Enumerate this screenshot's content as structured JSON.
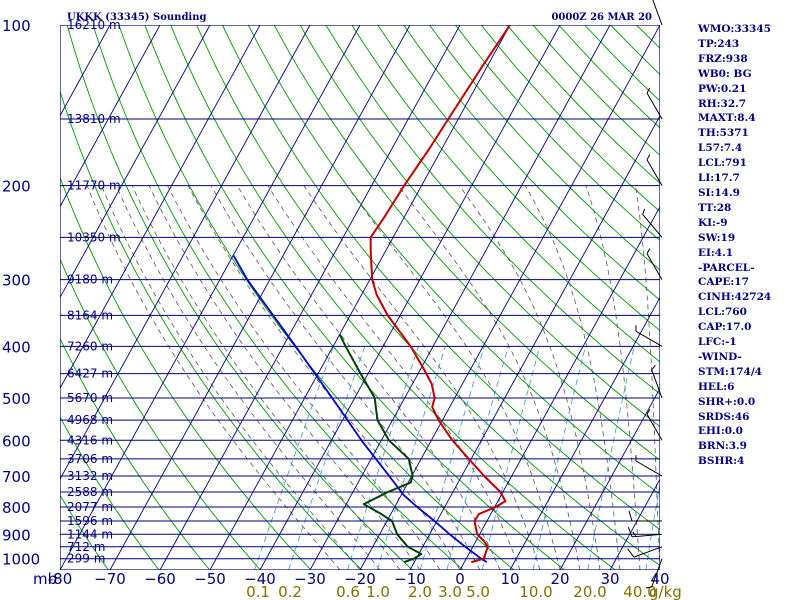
{
  "header": {
    "station_title": "UKKK (33345) Sounding",
    "valid_time": "0000Z 26 MAR 20"
  },
  "colors": {
    "isobar": "#000080",
    "isotherm": "#000080",
    "dry_adiabat": "#009900",
    "moist_adiabat": "#555555",
    "mixing_ratio": "#3399cc",
    "temperature": "#c00000",
    "dewpoint": "#004000",
    "parcel": "#0000cc",
    "axis_label": "#000080",
    "mixing_label": "#807000",
    "wind_barb": "#000000",
    "indices_text": "#000080"
  },
  "chart_data": {
    "type": "skew-t",
    "pressure_axis": {
      "unit_label": "mb",
      "ticks": [
        "100",
        "200",
        "300",
        "400",
        "500",
        "600",
        "700",
        "800",
        "900",
        "1000"
      ]
    },
    "temperature_axis": {
      "ticks": [
        {
          "t": -80,
          "label": "-80"
        },
        {
          "t": -70,
          "label": "−70"
        },
        {
          "t": -60,
          "label": "−60"
        },
        {
          "t": -50,
          "label": "−50"
        },
        {
          "t": -40,
          "label": "−40"
        },
        {
          "t": -30,
          "label": "−30"
        },
        {
          "t": -20,
          "label": "−20"
        },
        {
          "t": -10,
          "label": "−10"
        },
        {
          "t": 0,
          "label": "0"
        },
        {
          "t": 10,
          "label": "10"
        },
        {
          "t": 20,
          "label": "20"
        },
        {
          "t": 30,
          "label": "30"
        },
        {
          "t": 40,
          "label": "40"
        }
      ]
    },
    "mixing_ratio_labels": {
      "values": [
        "0.1",
        "0.2",
        "0.6",
        "1.0",
        "2.0",
        "3.0",
        "5.0",
        "10.0",
        "20.0",
        "40.0"
      ],
      "unit": "g/kg"
    },
    "heights": [
      {
        "p": 100,
        "label": "16210 m"
      },
      {
        "p": 150,
        "label": "13810 m"
      },
      {
        "p": 200,
        "label": "11770 m"
      },
      {
        "p": 250,
        "label": "10350 m"
      },
      {
        "p": 300,
        "label": "9180 m"
      },
      {
        "p": 350,
        "label": "8164 m"
      },
      {
        "p": 400,
        "label": "7260 m"
      },
      {
        "p": 450,
        "label": "6427 m"
      },
      {
        "p": 500,
        "label": "5670 m"
      },
      {
        "p": 550,
        "label": "4968 m"
      },
      {
        "p": 600,
        "label": "4316 m"
      },
      {
        "p": 650,
        "label": "3706 m"
      },
      {
        "p": 700,
        "label": "3132 m"
      },
      {
        "p": 750,
        "label": "2588 m"
      },
      {
        "p": 800,
        "label": "2077 m"
      },
      {
        "p": 850,
        "label": "1596 m"
      },
      {
        "p": 900,
        "label": "1144 m"
      },
      {
        "p": 950,
        "label": "712 m"
      },
      {
        "p": 1000,
        "label": "299 m"
      }
    ],
    "temperature_profile": [
      {
        "p": 1015,
        "t": 1.4
      },
      {
        "p": 1000,
        "t": 3.5
      },
      {
        "p": 950,
        "t": 3.0
      },
      {
        "p": 925,
        "t": 1.5
      },
      {
        "p": 900,
        "t": -0.5
      },
      {
        "p": 850,
        "t": -2.5
      },
      {
        "p": 825,
        "t": -2.4
      },
      {
        "p": 800,
        "t": 0.2
      },
      {
        "p": 780,
        "t": 1.5
      },
      {
        "p": 750,
        "t": -0.5
      },
      {
        "p": 700,
        "t": -5.5
      },
      {
        "p": 650,
        "t": -10.5
      },
      {
        "p": 600,
        "t": -15.8
      },
      {
        "p": 550,
        "t": -20.8
      },
      {
        "p": 520,
        "t": -23.5
      },
      {
        "p": 500,
        "t": -24.0
      },
      {
        "p": 470,
        "t": -26.2
      },
      {
        "p": 440,
        "t": -29.5
      },
      {
        "p": 400,
        "t": -34.5
      },
      {
        "p": 350,
        "t": -42.5
      },
      {
        "p": 320,
        "t": -47.0
      },
      {
        "p": 300,
        "t": -49.5
      },
      {
        "p": 270,
        "t": -52.5
      },
      {
        "p": 250,
        "t": -54.5
      },
      {
        "p": 230,
        "t": -54.0
      },
      {
        "p": 200,
        "t": -53.5
      },
      {
        "p": 170,
        "t": -52.5
      },
      {
        "p": 150,
        "t": -52.0
      },
      {
        "p": 120,
        "t": -51.0
      },
      {
        "p": 100,
        "t": -50.0
      }
    ],
    "dewpoint_profile": [
      {
        "p": 1015,
        "t": -12.0
      },
      {
        "p": 1000,
        "t": -10.5
      },
      {
        "p": 980,
        "t": -9.5
      },
      {
        "p": 950,
        "t": -13.0
      },
      {
        "p": 900,
        "t": -16.5
      },
      {
        "p": 850,
        "t": -19.0
      },
      {
        "p": 820,
        "t": -22.5
      },
      {
        "p": 790,
        "t": -26.5
      },
      {
        "p": 750,
        "t": -23.0
      },
      {
        "p": 720,
        "t": -19.5
      },
      {
        "p": 700,
        "t": -19.8
      },
      {
        "p": 650,
        "t": -22.5
      },
      {
        "p": 600,
        "t": -28.5
      },
      {
        "p": 550,
        "t": -33.0
      },
      {
        "p": 500,
        "t": -36.0
      },
      {
        "p": 450,
        "t": -41.5
      },
      {
        "p": 400,
        "t": -47.5
      },
      {
        "p": 380,
        "t": -50.0
      }
    ],
    "parcel_profile": [
      {
        "p": 1015,
        "t": 4.5
      },
      {
        "p": 1000,
        "t": 3.0
      },
      {
        "p": 950,
        "t": -1.5
      },
      {
        "p": 900,
        "t": -6.0
      },
      {
        "p": 850,
        "t": -10.5
      },
      {
        "p": 800,
        "t": -15.5
      },
      {
        "p": 760,
        "t": -19.5
      },
      {
        "p": 700,
        "t": -24.5
      },
      {
        "p": 600,
        "t": -34.0
      },
      {
        "p": 500,
        "t": -44.5
      },
      {
        "p": 400,
        "t": -57.5
      },
      {
        "p": 300,
        "t": -74.5
      },
      {
        "p": 270,
        "t": -80.0
      }
    ],
    "wind_barbs": [
      {
        "p": 1000,
        "dir": 200,
        "speed": 5
      },
      {
        "p": 950,
        "dir": 250,
        "speed": 10
      },
      {
        "p": 900,
        "dir": 265,
        "speed": 15
      },
      {
        "p": 850,
        "dir": 270,
        "speed": 10
      },
      {
        "p": 700,
        "dir": 300,
        "speed": 5
      },
      {
        "p": 600,
        "dir": 330,
        "speed": 5
      },
      {
        "p": 500,
        "dir": 340,
        "speed": 5
      },
      {
        "p": 400,
        "dir": 300,
        "speed": 5
      },
      {
        "p": 300,
        "dir": 330,
        "speed": 5
      },
      {
        "p": 250,
        "dir": 320,
        "speed": 5
      },
      {
        "p": 200,
        "dir": 330,
        "speed": 5
      },
      {
        "p": 150,
        "dir": 330,
        "speed": 5
      },
      {
        "p": 100,
        "dir": 340,
        "speed": 5
      }
    ]
  },
  "indices": [
    "WMO:33345",
    "TP:243",
    "FRZ:938",
    "WB0: BG",
    "PW:0.21",
    "RH:32.7",
    "MAXT:8.4",
    "TH:5371",
    "L57:7.4",
    "LCL:791",
    "LI:17.7",
    "SI:14.9",
    "TT:28",
    "KI:-9",
    "SW:19",
    "EI:4.1",
    "-PARCEL-",
    "CAPE:17",
    "CINH:42724",
    "LCL:760",
    "CAP:17.0",
    "LFC:-1",
    "-WIND-",
    "STM:174/4",
    "HEL:6",
    "SHR+:0.0",
    "SRDS:46",
    "EHI:0.0",
    "BRN:3.9",
    "BSHR:4"
  ]
}
